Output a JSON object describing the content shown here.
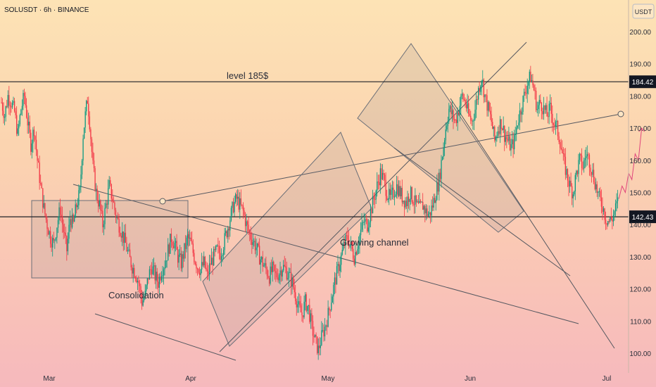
{
  "symbol_line": "SOLUSDT · 6h · BINANCE",
  "currency_badge": "USDT",
  "colors": {
    "up": "#089981",
    "down": "#f23645",
    "line": "#555860",
    "box": "rgba(120,123,134,0.14)"
  },
  "chart_data": {
    "type": "candlestick",
    "title": "SOLUSDT · 6h · BINANCE",
    "ylim": [
      96,
      210
    ],
    "yticks": [
      100,
      110,
      120,
      130,
      140,
      150,
      160,
      170,
      180,
      190,
      200
    ],
    "y_tick_labels": [
      "100.00",
      "110.00",
      "120.00",
      "130.00",
      "140.00",
      "150.00",
      "160.00",
      "170.00",
      "180.00",
      "190.00",
      "200.00"
    ],
    "x_tick_labels": [
      "Mar",
      "Apr",
      "May",
      "Jun",
      "Jul"
    ],
    "price_labels": [
      {
        "label": "184.42",
        "value": 184.42
      },
      {
        "label": "142.43",
        "value": 142.43
      }
    ],
    "horizontal_levels": [
      184.42,
      142.43
    ],
    "annotations": [
      "level 185$",
      "Consolidation",
      "Growing channel"
    ],
    "price_path": [
      [
        0,
        178
      ],
      [
        3,
        174
      ],
      [
        6,
        180
      ],
      [
        9,
        178
      ],
      [
        12,
        175
      ],
      [
        15,
        168
      ],
      [
        18,
        176
      ],
      [
        21,
        180
      ],
      [
        24,
        172
      ],
      [
        27,
        165
      ],
      [
        30,
        170
      ],
      [
        33,
        160
      ],
      [
        36,
        152
      ],
      [
        39,
        145
      ],
      [
        42,
        140
      ],
      [
        45,
        136
      ],
      [
        48,
        134
      ],
      [
        51,
        140
      ],
      [
        54,
        145
      ],
      [
        57,
        138
      ],
      [
        60,
        132
      ],
      [
        63,
        142
      ],
      [
        66,
        140
      ],
      [
        69,
        146
      ],
      [
        72,
        150
      ],
      [
        75,
        168
      ],
      [
        77,
        174
      ],
      [
        79,
        179
      ],
      [
        81,
        172
      ],
      [
        84,
        158
      ],
      [
        87,
        150
      ],
      [
        90,
        146
      ],
      [
        93,
        140
      ],
      [
        96,
        146
      ],
      [
        99,
        152
      ],
      [
        102,
        148
      ],
      [
        105,
        143
      ],
      [
        108,
        140
      ],
      [
        111,
        137
      ],
      [
        114,
        134
      ],
      [
        117,
        130
      ],
      [
        120,
        127
      ],
      [
        123,
        125
      ],
      [
        126,
        122
      ],
      [
        129,
        116
      ],
      [
        132,
        118
      ],
      [
        135,
        124
      ],
      [
        138,
        127
      ],
      [
        141,
        124
      ],
      [
        144,
        122
      ],
      [
        147,
        126
      ],
      [
        150,
        128
      ],
      [
        153,
        132
      ],
      [
        156,
        136
      ],
      [
        159,
        134
      ],
      [
        162,
        130
      ],
      [
        165,
        128
      ],
      [
        168,
        132
      ],
      [
        171,
        136
      ],
      [
        174,
        134
      ],
      [
        177,
        130
      ],
      [
        180,
        127
      ],
      [
        183,
        126
      ],
      [
        186,
        128
      ],
      [
        189,
        124
      ],
      [
        192,
        128
      ],
      [
        195,
        130
      ],
      [
        198,
        132
      ],
      [
        201,
        131
      ],
      [
        204,
        134
      ],
      [
        207,
        138
      ],
      [
        210,
        142
      ],
      [
        213,
        146
      ],
      [
        216,
        148
      ],
      [
        219,
        146
      ],
      [
        222,
        144
      ],
      [
        225,
        140
      ],
      [
        228,
        137
      ],
      [
        231,
        135
      ],
      [
        234,
        133
      ],
      [
        237,
        130
      ],
      [
        240,
        128
      ],
      [
        243,
        126
      ],
      [
        246,
        124
      ],
      [
        249,
        126
      ],
      [
        252,
        124
      ],
      [
        255,
        125
      ],
      [
        258,
        127
      ],
      [
        261,
        126
      ],
      [
        264,
        124
      ],
      [
        267,
        122
      ],
      [
        270,
        118
      ],
      [
        273,
        114
      ],
      [
        276,
        112
      ],
      [
        279,
        116
      ],
      [
        282,
        114
      ],
      [
        285,
        108
      ],
      [
        288,
        104
      ],
      [
        291,
        101
      ],
      [
        294,
        105
      ],
      [
        297,
        108
      ],
      [
        300,
        112
      ],
      [
        303,
        117
      ],
      [
        306,
        122
      ],
      [
        309,
        126
      ],
      [
        312,
        130
      ],
      [
        315,
        134
      ],
      [
        318,
        136
      ],
      [
        321,
        133
      ],
      [
        324,
        130
      ],
      [
        327,
        134
      ],
      [
        330,
        138
      ],
      [
        333,
        141
      ],
      [
        336,
        140
      ],
      [
        339,
        144
      ],
      [
        342,
        148
      ],
      [
        345,
        152
      ],
      [
        348,
        156
      ],
      [
        351,
        154
      ],
      [
        354,
        150
      ],
      [
        357,
        148
      ],
      [
        360,
        150
      ],
      [
        363,
        152
      ],
      [
        366,
        150
      ],
      [
        369,
        148
      ],
      [
        372,
        147
      ],
      [
        375,
        150
      ],
      [
        378,
        148
      ],
      [
        381,
        146
      ],
      [
        384,
        145
      ],
      [
        387,
        146
      ],
      [
        390,
        144
      ],
      [
        393,
        143
      ],
      [
        396,
        146
      ],
      [
        399,
        150
      ],
      [
        402,
        154
      ],
      [
        405,
        162
      ],
      [
        408,
        170
      ],
      [
        411,
        176
      ],
      [
        414,
        174
      ],
      [
        417,
        172
      ],
      [
        420,
        176
      ],
      [
        423,
        180
      ],
      [
        426,
        178
      ],
      [
        429,
        174
      ],
      [
        432,
        172
      ],
      [
        435,
        176
      ],
      [
        438,
        182
      ],
      [
        441,
        186
      ],
      [
        444,
        180
      ],
      [
        447,
        176
      ],
      [
        450,
        172
      ],
      [
        453,
        166
      ],
      [
        456,
        170
      ],
      [
        459,
        172
      ],
      [
        462,
        168
      ],
      [
        465,
        166
      ],
      [
        468,
        164
      ],
      [
        471,
        166
      ],
      [
        474,
        172
      ],
      [
        477,
        176
      ],
      [
        480,
        180
      ],
      [
        483,
        184
      ],
      [
        486,
        186
      ],
      [
        489,
        182
      ],
      [
        492,
        176
      ],
      [
        495,
        178
      ],
      [
        498,
        176
      ],
      [
        501,
        174
      ],
      [
        504,
        176
      ],
      [
        507,
        172
      ],
      [
        510,
        170
      ],
      [
        513,
        166
      ],
      [
        516,
        160
      ],
      [
        519,
        156
      ],
      [
        522,
        152
      ],
      [
        525,
        150
      ],
      [
        528,
        156
      ],
      [
        531,
        160
      ],
      [
        534,
        158
      ],
      [
        537,
        162
      ],
      [
        540,
        160
      ],
      [
        543,
        156
      ],
      [
        546,
        152
      ],
      [
        549,
        148
      ],
      [
        552,
        146
      ],
      [
        555,
        142
      ],
      [
        558,
        141
      ],
      [
        561,
        142
      ],
      [
        564,
        145
      ],
      [
        567,
        148
      ]
    ],
    "projection_path": [
      [
        567,
        148
      ],
      [
        570,
        152
      ],
      [
        573,
        150
      ],
      [
        576,
        156
      ],
      [
        579,
        154
      ],
      [
        582,
        162
      ],
      [
        585,
        160
      ],
      [
        588,
        170
      ]
    ]
  }
}
